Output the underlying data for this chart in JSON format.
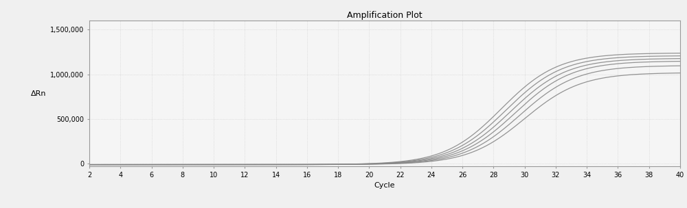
{
  "title": "Amplification Plot",
  "xlabel": "Cycle",
  "ylabel": "ΔRn",
  "xlim": [
    2,
    40
  ],
  "ylim": [
    -30000,
    1600000
  ],
  "xticks": [
    2,
    4,
    6,
    8,
    10,
    12,
    14,
    16,
    18,
    20,
    22,
    24,
    26,
    28,
    30,
    32,
    34,
    36,
    38,
    40
  ],
  "yticks": [
    0,
    500000,
    1000000,
    1500000
  ],
  "ytick_labels": [
    "0",
    "500,000",
    "1,000,000",
    "1,500,000"
  ],
  "background_color": "#f0f0f0",
  "plot_bg_color": "#f5f5f5",
  "grid_color": "#cccccc",
  "line_color": "#888888",
  "num_curves": 6,
  "sigmoid_midpoints": [
    28.5,
    28.8,
    29.1,
    29.4,
    29.7,
    30.0
  ],
  "sigmoid_slopes": [
    0.55,
    0.55,
    0.55,
    0.55,
    0.55,
    0.55
  ],
  "sigmoid_plateaus": [
    1250000,
    1220000,
    1190000,
    1160000,
    1110000,
    1030000
  ],
  "title_fontsize": 9,
  "axis_fontsize": 8,
  "tick_fontsize": 7
}
